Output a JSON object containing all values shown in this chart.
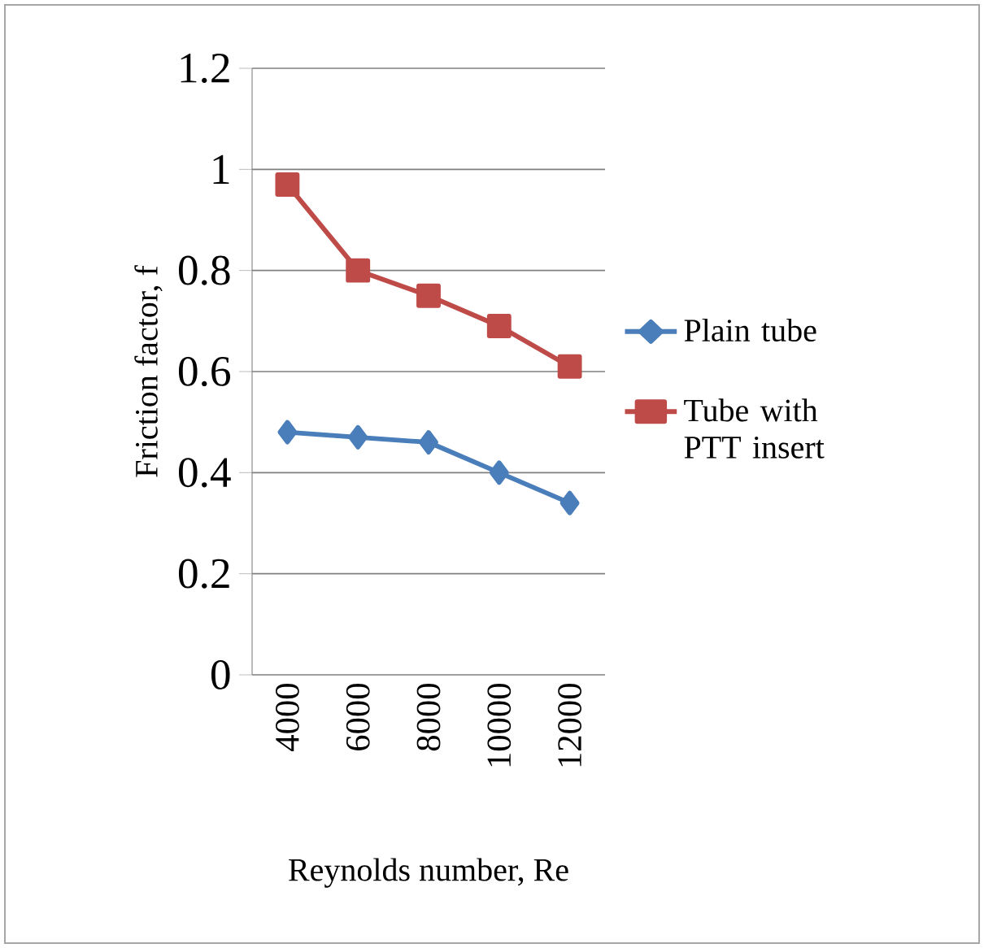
{
  "chart_data": {
    "type": "line",
    "xlabel": "Reynolds number, Re",
    "ylabel": "Friction factor, f",
    "categories": [
      "4000",
      "6000",
      "8000",
      "10000",
      "12000"
    ],
    "series": [
      {
        "name": "Plain tube",
        "color": "#4a7ebb",
        "marker": "diamond",
        "values": [
          0.48,
          0.47,
          0.46,
          0.4,
          0.34
        ]
      },
      {
        "name": "Tube with PTT insert",
        "color": "#be4b48",
        "marker": "square",
        "values": [
          0.97,
          0.8,
          0.75,
          0.69,
          0.61
        ]
      }
    ],
    "ylim": [
      0,
      1.2
    ],
    "yticks": [
      0,
      0.2,
      0.4,
      0.6,
      0.8,
      1,
      1.2
    ],
    "grid": "y",
    "legend": "right"
  }
}
